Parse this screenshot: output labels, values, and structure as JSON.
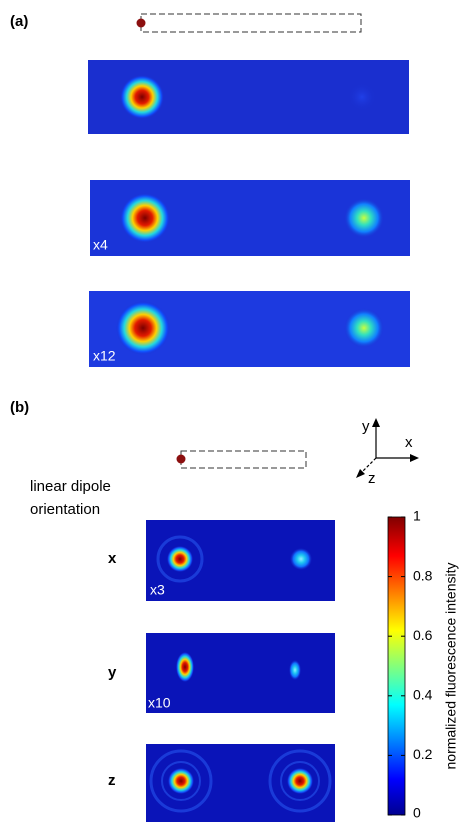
{
  "panel_a": {
    "label": "(a)",
    "image_labels": [
      "x4",
      "x12"
    ]
  },
  "panel_b": {
    "label": "(b)",
    "axes": {
      "y": "y",
      "x": "x",
      "z": "z"
    },
    "orientation_label": [
      "linear dipole",
      "orientation"
    ],
    "rows": [
      {
        "name": "x",
        "multiplier": "x3"
      },
      {
        "name": "y",
        "multiplier": "x10"
      },
      {
        "name": "z"
      }
    ],
    "colorbar": {
      "label": "normalized fluorescence intensity",
      "lim": [
        0,
        1
      ],
      "ticks": [
        0,
        0.2,
        0.4,
        0.6,
        0.8,
        1
      ]
    }
  }
}
